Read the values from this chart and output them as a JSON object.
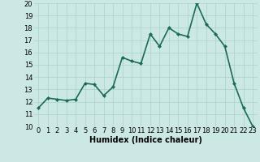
{
  "x": [
    0,
    1,
    2,
    3,
    4,
    5,
    6,
    7,
    8,
    9,
    10,
    11,
    12,
    13,
    14,
    15,
    16,
    17,
    18,
    19,
    20,
    21,
    22,
    23
  ],
  "y": [
    11.5,
    12.3,
    12.2,
    12.1,
    12.2,
    13.5,
    13.4,
    12.5,
    13.2,
    15.6,
    15.3,
    15.1,
    17.5,
    16.5,
    18.0,
    17.5,
    17.3,
    20.0,
    18.3,
    17.5,
    16.5,
    13.5,
    11.5,
    10.0
  ],
  "line_color": "#1a6b5a",
  "marker": "D",
  "marker_size": 2,
  "background_color": "#cce8e4",
  "grid_color": "#afd4cf",
  "xlabel": "Humidex (Indice chaleur)",
  "xlabel_fontsize": 7,
  "ylim": [
    10,
    20
  ],
  "xlim": [
    -0.5,
    23.5
  ],
  "yticks": [
    10,
    11,
    12,
    13,
    14,
    15,
    16,
    17,
    18,
    19,
    20
  ],
  "xticks": [
    0,
    1,
    2,
    3,
    4,
    5,
    6,
    7,
    8,
    9,
    10,
    11,
    12,
    13,
    14,
    15,
    16,
    17,
    18,
    19,
    20,
    21,
    22,
    23
  ],
  "tick_fontsize": 6,
  "linewidth": 1.2
}
